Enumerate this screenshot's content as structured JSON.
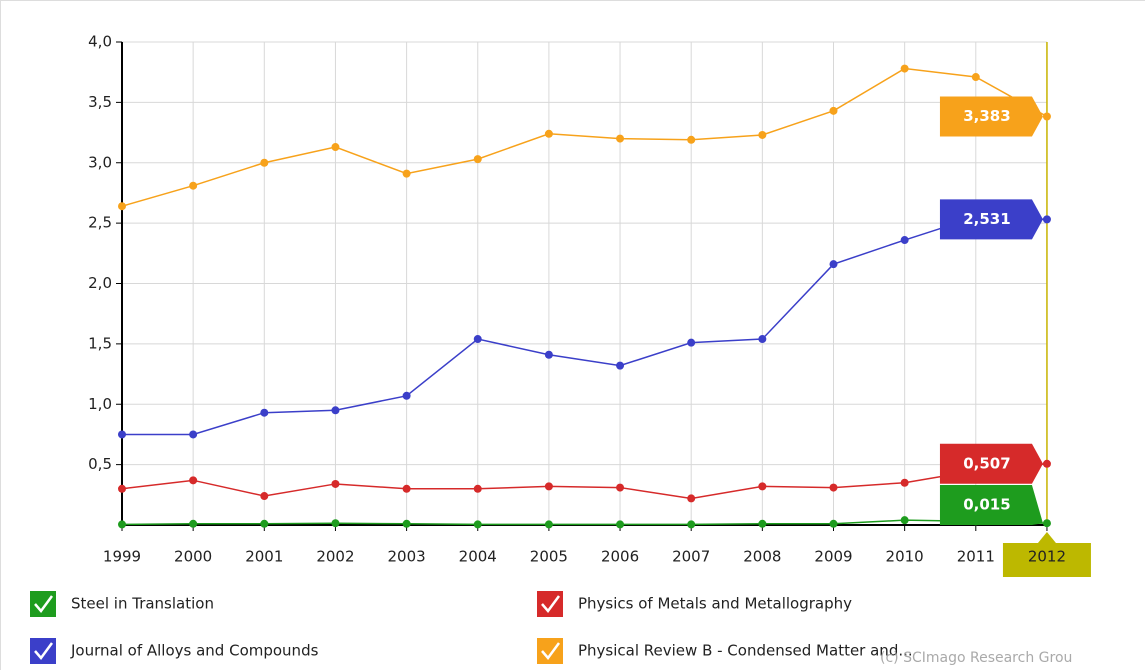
{
  "chart_data": {
    "type": "line",
    "categories": [
      "1999",
      "2000",
      "2001",
      "2002",
      "2003",
      "2004",
      "2005",
      "2006",
      "2007",
      "2008",
      "2009",
      "2010",
      "2011",
      "2012"
    ],
    "highlight_index": 13,
    "ylim": [
      0,
      4
    ],
    "yticks": [
      {
        "value": 0.5,
        "label": "0,5"
      },
      {
        "value": 1,
        "label": "1,0"
      },
      {
        "value": 1.5,
        "label": "1,5"
      },
      {
        "value": 2,
        "label": "2,0"
      },
      {
        "value": 2.5,
        "label": "2,5"
      },
      {
        "value": 3,
        "label": "3,0"
      },
      {
        "value": 3.5,
        "label": "3,5"
      },
      {
        "value": 4,
        "label": "4,0"
      }
    ],
    "grid": true,
    "series": [
      {
        "name": "Steel in Translation",
        "color": "#1e9c1e",
        "values": [
          0.005,
          0.01,
          0.01,
          0.015,
          0.01,
          0.005,
          0.005,
          0.005,
          0.005,
          0.01,
          0.01,
          0.04,
          0.03,
          0.015
        ],
        "value_labels": [
          null,
          null,
          null,
          null,
          null,
          null,
          null,
          null,
          null,
          null,
          null,
          null,
          null,
          "0,015"
        ]
      },
      {
        "name": "Physics of Metals and Metallography",
        "color": "#d62a2a",
        "values": [
          0.3,
          0.37,
          0.24,
          0.34,
          0.3,
          0.3,
          0.32,
          0.31,
          0.22,
          0.32,
          0.31,
          0.35,
          0.45,
          0.507
        ],
        "value_labels": [
          null,
          null,
          null,
          null,
          null,
          null,
          null,
          null,
          null,
          null,
          null,
          null,
          null,
          "0,507"
        ]
      },
      {
        "name": "Journal of Alloys and Compounds",
        "color": "#3b3fc9",
        "values": [
          0.75,
          0.75,
          0.93,
          0.95,
          1.07,
          1.54,
          1.41,
          1.32,
          1.51,
          1.54,
          2.16,
          2.36,
          2.55,
          2.531
        ],
        "value_labels": [
          null,
          null,
          null,
          null,
          null,
          null,
          null,
          null,
          null,
          null,
          null,
          null,
          null,
          "2,531"
        ]
      },
      {
        "name": "Physical Review B - Condensed Matter and...",
        "color": "#f7a21b",
        "values": [
          2.64,
          2.81,
          3.0,
          3.13,
          2.91,
          3.03,
          3.24,
          3.2,
          3.19,
          3.23,
          3.43,
          3.78,
          3.71,
          3.383
        ],
        "value_labels": [
          null,
          null,
          null,
          null,
          null,
          null,
          null,
          null,
          null,
          null,
          null,
          null,
          null,
          "3,383"
        ]
      }
    ],
    "credit": "(c) SCImago Research Grou"
  }
}
